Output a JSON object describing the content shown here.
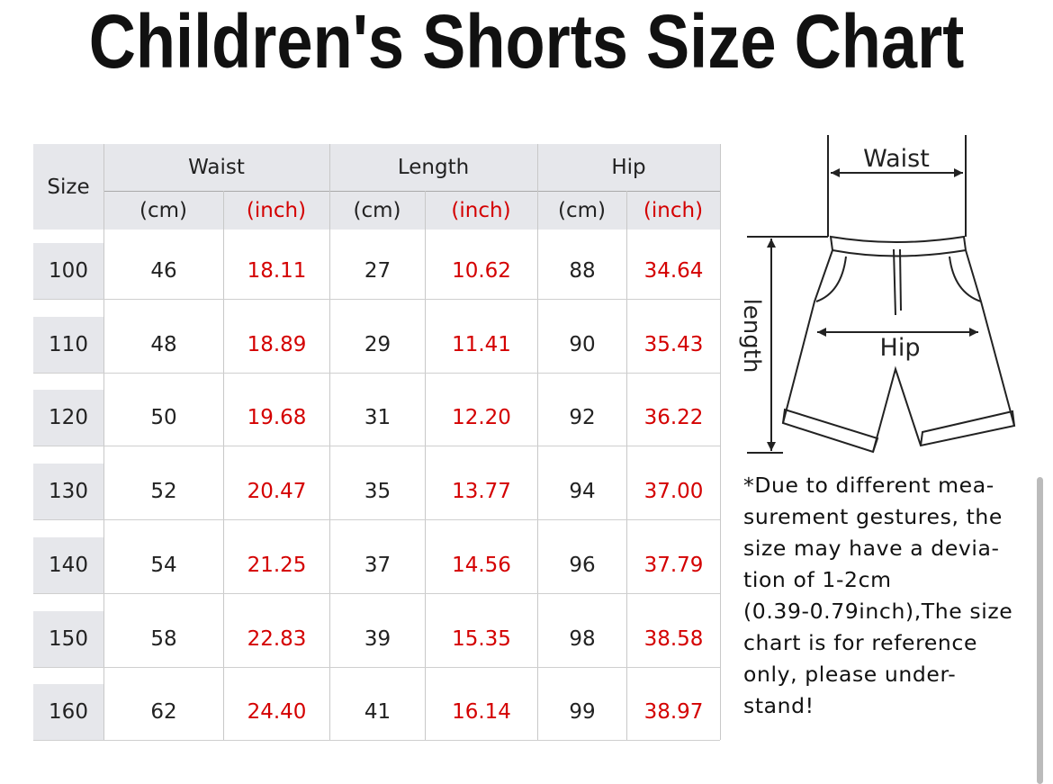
{
  "title": "Children's Shorts Size Chart",
  "table": {
    "size_header": "Size",
    "groups": [
      "Waist",
      "Length",
      "Hip"
    ],
    "units": [
      "(cm)",
      "(inch)",
      "(cm)",
      "(inch)",
      "(cm)",
      "(inch)"
    ],
    "rows": [
      [
        "100",
        "46",
        "18.11",
        "27",
        "10.62",
        "88",
        "34.64"
      ],
      [
        "110",
        "48",
        "18.89",
        "29",
        "11.41",
        "90",
        "35.43"
      ],
      [
        "120",
        "50",
        "19.68",
        "31",
        "12.20",
        "92",
        "36.22"
      ],
      [
        "130",
        "52",
        "20.47",
        "35",
        "13.77",
        "94",
        "37.00"
      ],
      [
        "140",
        "54",
        "21.25",
        "37",
        "14.56",
        "96",
        "37.79"
      ],
      [
        "150",
        "58",
        "22.83",
        "39",
        "15.35",
        "98",
        "38.58"
      ],
      [
        "160",
        "62",
        "24.40",
        "41",
        "16.14",
        "99",
        "38.97"
      ]
    ]
  },
  "diagram": {
    "waist": "Waist",
    "length": "length",
    "hip": "Hip"
  },
  "note": [
    "*Due to different mea-",
    "surement gestures, the",
    "size may have a devia-",
    "tion of 1-2cm",
    "(0.39-0.79inch),The size",
    "chart is for reference",
    "only, please under-",
    "stand!"
  ]
}
